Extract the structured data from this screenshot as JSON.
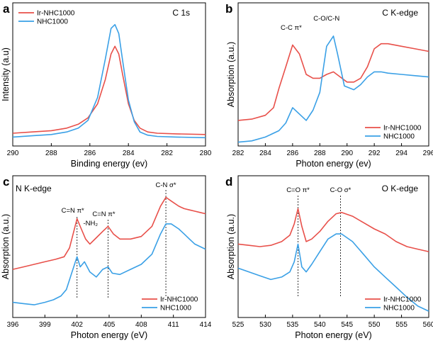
{
  "colors": {
    "ir": "#e8504a",
    "nhc": "#3aa0e6",
    "axis": "#000000"
  },
  "chart_data": [
    {
      "type": "line",
      "panel": "a",
      "title": "C 1s",
      "xlabel": "Binding energy (ev)",
      "ylabel": "Intensity (a.u)",
      "xlim": [
        290,
        280
      ],
      "ylim": [
        0,
        1.12
      ],
      "xticks": [
        "290",
        "288",
        "286",
        "284",
        "282",
        "280"
      ],
      "xtick_values": [
        290,
        288,
        286,
        284,
        282,
        280
      ],
      "legend": "top-left",
      "series": [
        {
          "name": "Ir-NHC1000",
          "x": [
            290,
            289,
            288,
            287.2,
            286.6,
            286.1,
            285.6,
            285.2,
            284.9,
            284.7,
            284.5,
            284.3,
            284.0,
            283.7,
            283.4,
            283.0,
            282.5,
            281.5,
            280
          ],
          "y": [
            0.1,
            0.11,
            0.12,
            0.14,
            0.17,
            0.22,
            0.33,
            0.52,
            0.72,
            0.78,
            0.72,
            0.56,
            0.33,
            0.2,
            0.14,
            0.11,
            0.1,
            0.095,
            0.09
          ]
        },
        {
          "name": "NHC1000",
          "x": [
            290,
            289,
            288,
            287.2,
            286.6,
            286.1,
            285.6,
            285.2,
            284.9,
            284.7,
            284.5,
            284.3,
            284.0,
            283.7,
            283.4,
            283.0,
            282.5,
            281.5,
            280
          ],
          "y": [
            0.07,
            0.08,
            0.09,
            0.11,
            0.14,
            0.2,
            0.38,
            0.68,
            0.92,
            0.95,
            0.88,
            0.67,
            0.36,
            0.19,
            0.11,
            0.085,
            0.075,
            0.07,
            0.065
          ]
        }
      ],
      "annotations": []
    },
    {
      "type": "line",
      "panel": "b",
      "title": "C K-edge",
      "xlabel": "Photon energy (ev)",
      "ylabel": "Absorption (a.u.)",
      "xlim": [
        282,
        296
      ],
      "ylim": [
        0,
        1.12
      ],
      "xticks": [
        "282",
        "284",
        "286",
        "288",
        "290",
        "292",
        "294",
        "296"
      ],
      "xtick_values": [
        282,
        284,
        286,
        288,
        290,
        292,
        294,
        296
      ],
      "legend": "bottom-right",
      "series": [
        {
          "name": "Ir-NHC1000",
          "x": [
            282,
            283,
            284,
            284.6,
            285,
            285.5,
            286,
            286.5,
            287,
            287.5,
            288,
            288.5,
            289,
            289.5,
            290,
            290.5,
            291,
            291.5,
            292,
            292.5,
            293,
            294,
            295,
            296
          ],
          "y": [
            0.2,
            0.21,
            0.24,
            0.3,
            0.45,
            0.62,
            0.79,
            0.72,
            0.56,
            0.53,
            0.53,
            0.56,
            0.58,
            0.54,
            0.5,
            0.5,
            0.53,
            0.62,
            0.76,
            0.8,
            0.8,
            0.78,
            0.76,
            0.74
          ]
        },
        {
          "name": "NHC1000",
          "x": [
            282,
            283,
            284,
            285,
            285.5,
            286,
            286.5,
            287,
            287.5,
            288,
            288.5,
            289,
            289.3,
            289.8,
            290.5,
            291,
            291.5,
            292,
            292.5,
            293,
            294,
            295,
            296
          ],
          "y": [
            0.03,
            0.04,
            0.07,
            0.12,
            0.18,
            0.3,
            0.25,
            0.2,
            0.28,
            0.42,
            0.78,
            0.86,
            0.72,
            0.47,
            0.44,
            0.48,
            0.54,
            0.58,
            0.58,
            0.57,
            0.56,
            0.55,
            0.54
          ]
        }
      ],
      "annotations": [
        {
          "text": "C-C π*",
          "x": 285.9
        },
        {
          "text": "C-O/C-N",
          "x": 288.7
        }
      ]
    },
    {
      "type": "line",
      "panel": "c",
      "title": "N K-edge",
      "xlabel": "Photon energy (eV)",
      "ylabel": "Absorption (a.u.)",
      "xlim": [
        396,
        414
      ],
      "ylim": [
        0,
        1.12
      ],
      "xticks": [
        "396",
        "399",
        "402",
        "405",
        "408",
        "411",
        "414"
      ],
      "xtick_values": [
        396,
        399,
        402,
        405,
        408,
        411,
        414
      ],
      "legend": "bottom-right",
      "series": [
        {
          "name": "Ir-NHC1000",
          "x": [
            396,
            397,
            398,
            399,
            400,
            400.8,
            401.3,
            401.7,
            402,
            402.4,
            402.8,
            403.2,
            403.8,
            404.4,
            404.9,
            405.4,
            406,
            407,
            408,
            409,
            409.8,
            410.3,
            410.8,
            411.5,
            412,
            412.5,
            413,
            413.5,
            414
          ],
          "y": [
            0.38,
            0.4,
            0.42,
            0.44,
            0.46,
            0.48,
            0.55,
            0.68,
            0.78,
            0.7,
            0.62,
            0.58,
            0.63,
            0.68,
            0.72,
            0.66,
            0.62,
            0.62,
            0.64,
            0.72,
            0.88,
            0.95,
            0.92,
            0.88,
            0.86,
            0.85,
            0.84,
            0.83,
            0.82
          ]
        },
        {
          "name": "NHC1000",
          "x": [
            396,
            397,
            398,
            399,
            399.8,
            400.5,
            401,
            401.5,
            402,
            402.3,
            402.7,
            403.2,
            403.8,
            404.4,
            404.9,
            405.3,
            406,
            407,
            408,
            409,
            409.8,
            410.3,
            410.8,
            411.5,
            412,
            412.5,
            413,
            413.5,
            414
          ],
          "y": [
            0.12,
            0.11,
            0.1,
            0.12,
            0.14,
            0.17,
            0.22,
            0.35,
            0.48,
            0.4,
            0.44,
            0.36,
            0.32,
            0.38,
            0.4,
            0.35,
            0.34,
            0.38,
            0.42,
            0.5,
            0.66,
            0.74,
            0.74,
            0.7,
            0.66,
            0.62,
            0.58,
            0.56,
            0.54
          ]
        }
      ],
      "annotations": [
        {
          "text": "C=N π*",
          "x": 402
        },
        {
          "text": "-NH₂",
          "x": 403
        },
        {
          "text": "C=N π*",
          "x": 404.9
        },
        {
          "text": "C-N σ*",
          "x": 410.3
        }
      ]
    },
    {
      "type": "line",
      "panel": "d",
      "title": "O K-edge",
      "xlabel": "Photon energy (eV)",
      "ylabel": "Absorption (a.u.)",
      "xlim": [
        525,
        560
      ],
      "ylim": [
        0,
        1.12
      ],
      "xticks": [
        "525",
        "530",
        "535",
        "540",
        "545",
        "550",
        "555",
        "560"
      ],
      "xtick_values": [
        525,
        530,
        535,
        540,
        545,
        550,
        555,
        560
      ],
      "legend": "bottom-right",
      "series": [
        {
          "name": "Ir-NHC1000",
          "x": [
            525,
            527,
            529,
            531,
            533,
            534.5,
            535.3,
            536,
            536.7,
            537.5,
            538.5,
            540,
            541.5,
            543,
            544,
            546,
            548,
            550,
            552,
            554,
            556,
            558,
            560
          ],
          "y": [
            0.58,
            0.57,
            0.56,
            0.57,
            0.6,
            0.65,
            0.74,
            0.86,
            0.72,
            0.6,
            0.62,
            0.68,
            0.76,
            0.82,
            0.83,
            0.8,
            0.75,
            0.7,
            0.66,
            0.6,
            0.56,
            0.54,
            0.52
          ]
        },
        {
          "name": "NHC1000",
          "x": [
            525,
            527,
            529,
            531,
            533,
            534.5,
            535.3,
            536,
            536.7,
            537.5,
            538.5,
            540,
            541.5,
            543,
            544,
            546,
            548,
            550,
            552,
            554,
            556,
            558,
            560
          ],
          "y": [
            0.39,
            0.36,
            0.33,
            0.3,
            0.32,
            0.36,
            0.44,
            0.58,
            0.4,
            0.36,
            0.42,
            0.52,
            0.62,
            0.66,
            0.66,
            0.6,
            0.5,
            0.4,
            0.32,
            0.24,
            0.16,
            0.09,
            0.05
          ]
        }
      ],
      "annotations": [
        {
          "text": "C=O π*",
          "x": 536
        },
        {
          "text": "C-O σ*",
          "x": 543.8
        }
      ]
    }
  ]
}
